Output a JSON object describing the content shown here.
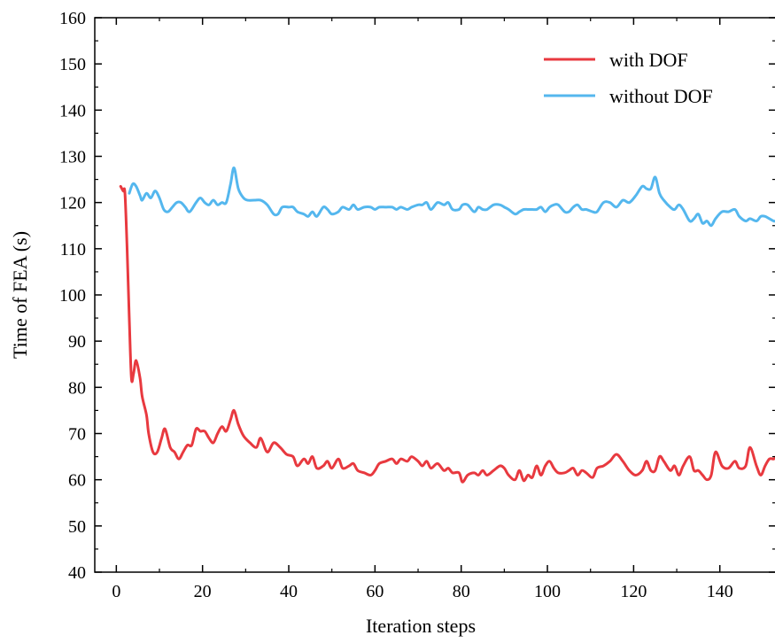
{
  "chart_data": {
    "type": "line",
    "title": "",
    "xlabel": "Iteration steps",
    "ylabel": "Time of FEA (s)",
    "xlim": [
      -5,
      153
    ],
    "ylim": [
      40,
      160
    ],
    "x_ticks": [
      0,
      20,
      40,
      60,
      80,
      100,
      120,
      140
    ],
    "y_ticks": [
      40,
      50,
      60,
      70,
      80,
      90,
      100,
      110,
      120,
      130,
      140,
      150,
      160
    ],
    "grid": false,
    "legend_position": "top-right",
    "series": [
      {
        "name": "with DOF",
        "color": "#e8393f",
        "points": [
          [
            1,
            123.5
          ],
          [
            1.6,
            122.5
          ],
          [
            2,
            122
          ],
          [
            2.5,
            110
          ],
          [
            3,
            95
          ],
          [
            3.5,
            82
          ],
          [
            4,
            83
          ],
          [
            4.6,
            85.8
          ],
          [
            5.5,
            82
          ],
          [
            6,
            78
          ],
          [
            7,
            74
          ],
          [
            7.5,
            70
          ],
          [
            8.5,
            66
          ],
          [
            9.5,
            66
          ],
          [
            10.5,
            69
          ],
          [
            11.3,
            71
          ],
          [
            12.5,
            67
          ],
          [
            13.5,
            66
          ],
          [
            14.5,
            64.5
          ],
          [
            15.5,
            66
          ],
          [
            16.5,
            67.5
          ],
          [
            17.5,
            67.5
          ],
          [
            18.5,
            71
          ],
          [
            19.5,
            70.5
          ],
          [
            20.5,
            70.5
          ],
          [
            21.5,
            69
          ],
          [
            22.5,
            68
          ],
          [
            23.5,
            70
          ],
          [
            24.5,
            71.5
          ],
          [
            25.5,
            70.5
          ],
          [
            26.5,
            73
          ],
          [
            27.3,
            75
          ],
          [
            28.3,
            72
          ],
          [
            29.5,
            69.5
          ],
          [
            31,
            68
          ],
          [
            32.5,
            67
          ],
          [
            33.5,
            69
          ],
          [
            35,
            66
          ],
          [
            36.5,
            68
          ],
          [
            38,
            67
          ],
          [
            39.5,
            65.5
          ],
          [
            41,
            65
          ],
          [
            42,
            63
          ],
          [
            43.5,
            64.5
          ],
          [
            44.5,
            63.5
          ],
          [
            45.5,
            65
          ],
          [
            46.5,
            62.5
          ],
          [
            48,
            63
          ],
          [
            49,
            64
          ],
          [
            50,
            62.5
          ],
          [
            51.5,
            64.5
          ],
          [
            52.5,
            62.5
          ],
          [
            54,
            63
          ],
          [
            55,
            63.5
          ],
          [
            56,
            62
          ],
          [
            57.5,
            61.5
          ],
          [
            59,
            61
          ],
          [
            60,
            62
          ],
          [
            61,
            63.5
          ],
          [
            62.5,
            64
          ],
          [
            64,
            64.5
          ],
          [
            65,
            63.5
          ],
          [
            66,
            64.5
          ],
          [
            67.5,
            64
          ],
          [
            68.5,
            65
          ],
          [
            70,
            64
          ],
          [
            71,
            63
          ],
          [
            72,
            64
          ],
          [
            73,
            62.5
          ],
          [
            74.5,
            63.5
          ],
          [
            76,
            62
          ],
          [
            77,
            62.5
          ],
          [
            78,
            61.5
          ],
          [
            79.5,
            61.5
          ],
          [
            80.3,
            59.5
          ],
          [
            81.5,
            61
          ],
          [
            83,
            61.5
          ],
          [
            84,
            61
          ],
          [
            85,
            62
          ],
          [
            86,
            61
          ],
          [
            87.5,
            62
          ],
          [
            89,
            63
          ],
          [
            90,
            62.5
          ],
          [
            91,
            61
          ],
          [
            92.5,
            60
          ],
          [
            93.5,
            62
          ],
          [
            94.5,
            59.8
          ],
          [
            95.5,
            61
          ],
          [
            96.5,
            60.5
          ],
          [
            97.5,
            63
          ],
          [
            98.5,
            61
          ],
          [
            99.5,
            63
          ],
          [
            100.5,
            64
          ],
          [
            101.5,
            62.5
          ],
          [
            102.5,
            61.5
          ],
          [
            104,
            61.5
          ],
          [
            105,
            62
          ],
          [
            106,
            62.5
          ],
          [
            107,
            61
          ],
          [
            108,
            62
          ],
          [
            109,
            61.5
          ],
          [
            110.5,
            60.5
          ],
          [
            111.5,
            62.5
          ],
          [
            113,
            63
          ],
          [
            114.5,
            64
          ],
          [
            116,
            65.5
          ],
          [
            117.5,
            64
          ],
          [
            119,
            62
          ],
          [
            120.5,
            61
          ],
          [
            122,
            62
          ],
          [
            123,
            64
          ],
          [
            124,
            62
          ],
          [
            125,
            62
          ],
          [
            126,
            65
          ],
          [
            127,
            64
          ],
          [
            128.5,
            62
          ],
          [
            129.5,
            63
          ],
          [
            130.5,
            61
          ],
          [
            131.5,
            63
          ],
          [
            133,
            65
          ],
          [
            134,
            62
          ],
          [
            135,
            62
          ],
          [
            136,
            61
          ],
          [
            137,
            60
          ],
          [
            138,
            61
          ],
          [
            139,
            66
          ],
          [
            140.5,
            63
          ],
          [
            142,
            62.5
          ],
          [
            143.5,
            64
          ],
          [
            144.5,
            62.5
          ],
          [
            146,
            63
          ],
          [
            147,
            67
          ],
          [
            148.5,
            63
          ],
          [
            149.5,
            61
          ],
          [
            150.5,
            63
          ],
          [
            151.5,
            64.5
          ],
          [
            152.5,
            64.5
          ],
          [
            153,
            65
          ]
        ]
      },
      {
        "name": "without DOF",
        "color": "#54b7ee",
        "points": [
          [
            3,
            122
          ],
          [
            3.8,
            124
          ],
          [
            4.6,
            123.5
          ],
          [
            5.5,
            121.5
          ],
          [
            6,
            120.5
          ],
          [
            7,
            122
          ],
          [
            8,
            121
          ],
          [
            9,
            122.5
          ],
          [
            10,
            121
          ],
          [
            11,
            118.5
          ],
          [
            12,
            118
          ],
          [
            13,
            119
          ],
          [
            14,
            120
          ],
          [
            15,
            120
          ],
          [
            16,
            119
          ],
          [
            17,
            118
          ],
          [
            18.5,
            120
          ],
          [
            19.5,
            121
          ],
          [
            20.5,
            120
          ],
          [
            21.5,
            119.5
          ],
          [
            22.5,
            120.5
          ],
          [
            23.5,
            119.5
          ],
          [
            24.5,
            120
          ],
          [
            25.5,
            120
          ],
          [
            26.5,
            124
          ],
          [
            27.3,
            127.5
          ],
          [
            28.3,
            123
          ],
          [
            29.5,
            121
          ],
          [
            30.5,
            120.5
          ],
          [
            32,
            120.5
          ],
          [
            33.5,
            120.5
          ],
          [
            35,
            119.5
          ],
          [
            36.5,
            117.5
          ],
          [
            37.5,
            117.5
          ],
          [
            38.5,
            119
          ],
          [
            40,
            119
          ],
          [
            41,
            119
          ],
          [
            42,
            118
          ],
          [
            43.5,
            117.5
          ],
          [
            44.5,
            117
          ],
          [
            45.5,
            118
          ],
          [
            46.5,
            117
          ],
          [
            48,
            119
          ],
          [
            49,
            118.5
          ],
          [
            50,
            117.5
          ],
          [
            51.5,
            118
          ],
          [
            52.5,
            119
          ],
          [
            54,
            118.5
          ],
          [
            55,
            119.5
          ],
          [
            56,
            118.5
          ],
          [
            57.5,
            119
          ],
          [
            59,
            119
          ],
          [
            60,
            118.5
          ],
          [
            61,
            119
          ],
          [
            62.5,
            119
          ],
          [
            64,
            119
          ],
          [
            65,
            118.5
          ],
          [
            66,
            119
          ],
          [
            67.5,
            118.5
          ],
          [
            68.5,
            119
          ],
          [
            70,
            119.5
          ],
          [
            71,
            119.5
          ],
          [
            72,
            120
          ],
          [
            73,
            118.5
          ],
          [
            74.5,
            120
          ],
          [
            76,
            119.5
          ],
          [
            77,
            120
          ],
          [
            78,
            118.5
          ],
          [
            79.5,
            118.5
          ],
          [
            80.3,
            119.5
          ],
          [
            81.5,
            119.5
          ],
          [
            83,
            118
          ],
          [
            84,
            119
          ],
          [
            85,
            118.5
          ],
          [
            86,
            118.5
          ],
          [
            87.5,
            119.5
          ],
          [
            89,
            119.5
          ],
          [
            90,
            119
          ],
          [
            91,
            118.5
          ],
          [
            92.5,
            117.5
          ],
          [
            93.5,
            118
          ],
          [
            94.5,
            118.5
          ],
          [
            95.5,
            118.5
          ],
          [
            96.5,
            118.5
          ],
          [
            97.5,
            118.5
          ],
          [
            98.5,
            119
          ],
          [
            99.5,
            118
          ],
          [
            100.5,
            119
          ],
          [
            101.5,
            119.5
          ],
          [
            102.5,
            119.5
          ],
          [
            104,
            118
          ],
          [
            105,
            118
          ],
          [
            106,
            119
          ],
          [
            107,
            119.5
          ],
          [
            108,
            118.5
          ],
          [
            109,
            118.5
          ],
          [
            110.5,
            118
          ],
          [
            111.5,
            118
          ],
          [
            113,
            120
          ],
          [
            114.5,
            120
          ],
          [
            116,
            119
          ],
          [
            117.5,
            120.5
          ],
          [
            119,
            120
          ],
          [
            120.5,
            121.5
          ],
          [
            122,
            123.5
          ],
          [
            123,
            123
          ],
          [
            124,
            123
          ],
          [
            125,
            125.5
          ],
          [
            126,
            122
          ],
          [
            127,
            120.5
          ],
          [
            128.5,
            119
          ],
          [
            129.5,
            118.5
          ],
          [
            130.5,
            119.5
          ],
          [
            131.5,
            118.5
          ],
          [
            133,
            116
          ],
          [
            134,
            116.5
          ],
          [
            135,
            117.5
          ],
          [
            136,
            115.5
          ],
          [
            137,
            116
          ],
          [
            138,
            115
          ],
          [
            139,
            116.5
          ],
          [
            140.5,
            118
          ],
          [
            142,
            118
          ],
          [
            143.5,
            118.5
          ],
          [
            144.5,
            117
          ],
          [
            146,
            116
          ],
          [
            147,
            116.5
          ],
          [
            148.5,
            116
          ],
          [
            149.5,
            117
          ],
          [
            150.5,
            117
          ],
          [
            151.5,
            116.5
          ],
          [
            152.5,
            116
          ],
          [
            153,
            116
          ]
        ]
      }
    ]
  }
}
